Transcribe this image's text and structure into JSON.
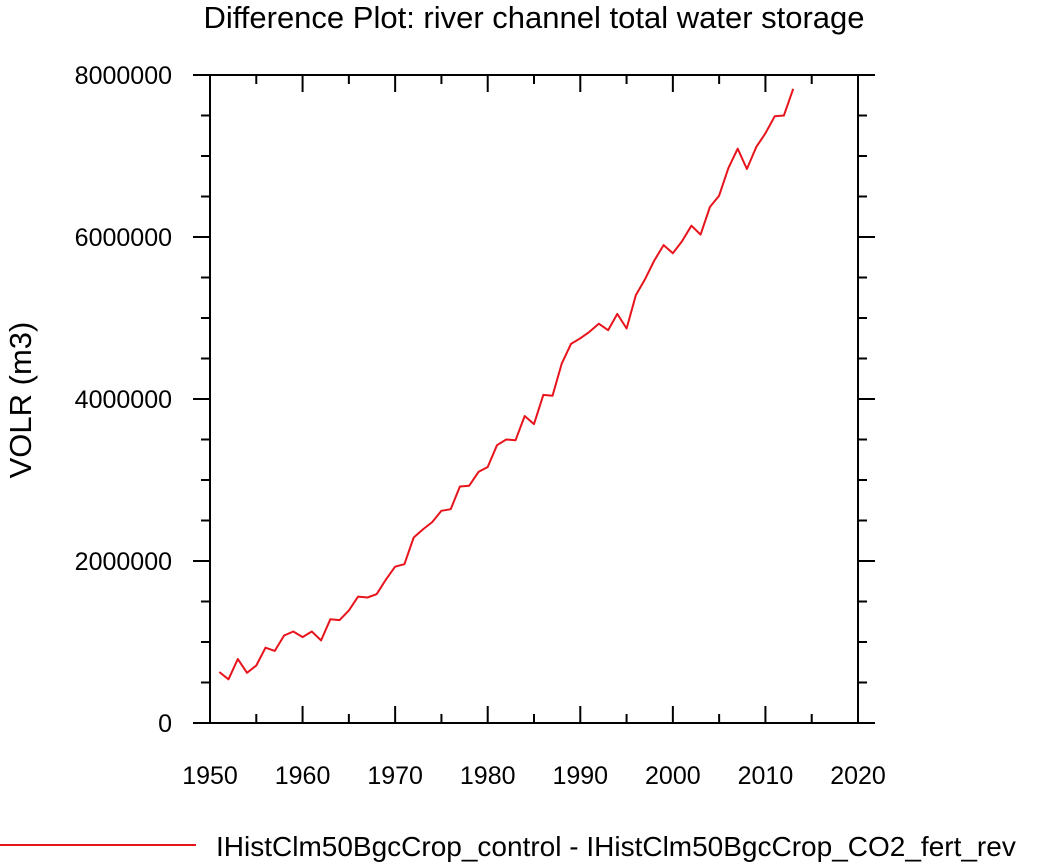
{
  "chart_data": {
    "type": "line",
    "title": "Difference Plot: river channel total water storage",
    "ylabel": "VOLR  (m3)",
    "xlabel": "",
    "xlim": [
      1950,
      2020
    ],
    "ylim": [
      0,
      8000000
    ],
    "x_ticks": [
      1950,
      1960,
      1970,
      1980,
      1990,
      2000,
      2010,
      2020
    ],
    "x_tick_labels": [
      "1950",
      "1960",
      "1970",
      "1980",
      "1990",
      "2000",
      "2010",
      "2020"
    ],
    "y_ticks": [
      0,
      2000000,
      4000000,
      6000000,
      8000000
    ],
    "y_tick_labels": [
      "0",
      "2000000",
      "4000000",
      "6000000",
      "8000000"
    ],
    "grid": false,
    "legend_position": "bottom",
    "series": [
      {
        "name": "IHistClm50BgcCrop_control - IHistClm50BgcCrop_CO2_fert_rev",
        "color": "#e8141c",
        "x": [
          1951,
          1952,
          1953,
          1954,
          1955,
          1956,
          1957,
          1958,
          1959,
          1960,
          1961,
          1962,
          1963,
          1964,
          1965,
          1966,
          1967,
          1968,
          1969,
          1970,
          1971,
          1972,
          1973,
          1974,
          1975,
          1976,
          1977,
          1978,
          1979,
          1980,
          1981,
          1982,
          1983,
          1984,
          1985,
          1986,
          1987,
          1988,
          1989,
          1990,
          1991,
          1992,
          1993,
          1994,
          1995,
          1996,
          1997,
          1998,
          1999,
          2000,
          2001,
          2002,
          2003,
          2004,
          2005,
          2006,
          2007,
          2008,
          2009,
          2010,
          2011,
          2012,
          2013
        ],
        "y": [
          630000,
          540000,
          790000,
          620000,
          710000,
          930000,
          890000,
          1080000,
          1130000,
          1060000,
          1130000,
          1020000,
          1280000,
          1270000,
          1390000,
          1560000,
          1550000,
          1590000,
          1770000,
          1930000,
          1960000,
          2290000,
          2390000,
          2480000,
          2620000,
          2640000,
          2920000,
          2930000,
          3100000,
          3160000,
          3430000,
          3500000,
          3490000,
          3790000,
          3690000,
          4050000,
          4040000,
          4440000,
          4680000,
          4750000,
          4830000,
          4930000,
          4850000,
          5050000,
          4870000,
          5280000,
          5480000,
          5710000,
          5900000,
          5800000,
          5950000,
          6140000,
          6030000,
          6370000,
          6510000,
          6850000,
          7090000,
          6840000,
          7110000,
          7280000,
          7490000,
          7500000,
          7830000
        ]
      }
    ]
  }
}
